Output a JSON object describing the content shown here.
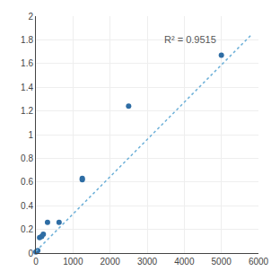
{
  "chart_data": {
    "type": "scatter",
    "series": [
      {
        "type": "scatter",
        "marker": "circle",
        "color": "#2e6da4",
        "x": [
          0,
          50,
          100,
          156,
          200,
          313,
          625,
          1250,
          1250,
          2500,
          5000
        ],
        "values": [
          0.01,
          0.02,
          0.13,
          0.14,
          0.16,
          0.26,
          0.26,
          0.62,
          0.63,
          1.24,
          1.67
        ]
      },
      {
        "type": "line",
        "line_style": "dotted",
        "color": "#6db0d8",
        "x": [
          0,
          5800
        ],
        "values": [
          0.015,
          1.84
        ]
      }
    ],
    "annotations": [
      "R² = 0.9515"
    ],
    "xlim": [
      0,
      6000
    ],
    "ylim": [
      0,
      2
    ],
    "xticks": [
      0,
      1000,
      2000,
      3000,
      4000,
      5000,
      6000
    ],
    "yticks": [
      0,
      0.2,
      0.4,
      0.6,
      0.8,
      1,
      1.2,
      1.4,
      1.6,
      1.8,
      2
    ],
    "grid": true
  }
}
